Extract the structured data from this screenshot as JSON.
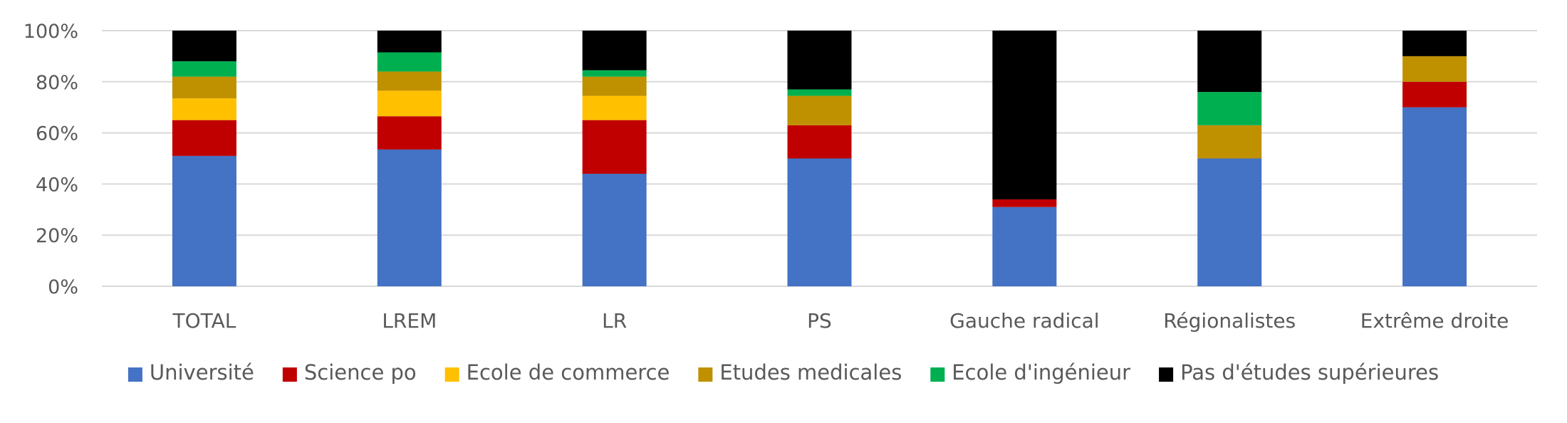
{
  "chart_data": {
    "type": "bar",
    "stacked": true,
    "normalized": true,
    "title": "",
    "xlabel": "",
    "ylabel": "",
    "ylim": [
      0,
      100
    ],
    "y_ticks": [
      "0%",
      "20%",
      "40%",
      "60%",
      "80%",
      "100%"
    ],
    "grid": true,
    "legend_position": "bottom",
    "categories": [
      "TOTAL",
      "LREM",
      "LR",
      "PS",
      "Gauche radical",
      "Régionalistes",
      "Extrême droite"
    ],
    "series": [
      {
        "name": "Université",
        "color": "#4472C4",
        "values": [
          51,
          53.5,
          44,
          50,
          31,
          50,
          70
        ]
      },
      {
        "name": "Science po",
        "color": "#C00000",
        "values": [
          14,
          13,
          21,
          13,
          3,
          0,
          10
        ]
      },
      {
        "name": "Ecole de commerce",
        "color": "#FFC000",
        "values": [
          8.5,
          10,
          9.5,
          0,
          0,
          0,
          0
        ]
      },
      {
        "name": "Etudes medicales",
        "color": "#BF9000",
        "values": [
          8.5,
          7.5,
          7.5,
          11.5,
          0,
          13,
          10
        ]
      },
      {
        "name": "Ecole d'ingénieur",
        "color": "#00B050",
        "values": [
          6,
          7.5,
          2.5,
          2.5,
          0,
          13,
          0
        ]
      },
      {
        "name": "Pas d'études supérieures",
        "color": "#000000",
        "values": [
          12,
          8.5,
          15.5,
          23,
          66,
          24,
          10
        ]
      }
    ]
  }
}
